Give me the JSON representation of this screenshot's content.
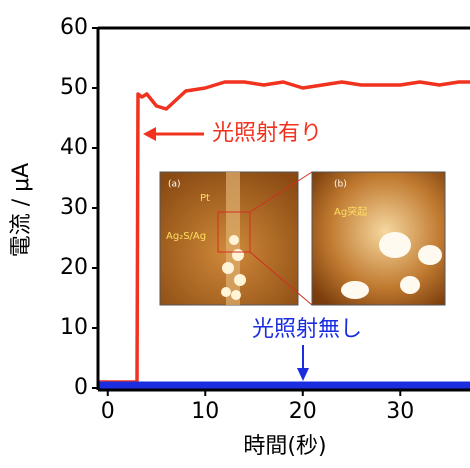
{
  "chart_data": {
    "type": "line",
    "xlabel": "時間(秒)",
    "ylabel": "電流 / μA",
    "xlim": [
      -1,
      37.15
    ],
    "ylim": [
      0,
      60
    ],
    "xticks": [
      0,
      10,
      20,
      30
    ],
    "yticks": [
      0,
      10,
      20,
      30,
      40,
      50,
      60
    ],
    "series": [
      {
        "name": "光照射有り",
        "color": "#f0321e",
        "x": [
          -1,
          3.0,
          3.1,
          3.5,
          4,
          5,
          6,
          7,
          8,
          10,
          12,
          14,
          16,
          18,
          20,
          22,
          24,
          26,
          28,
          30,
          32,
          34,
          36,
          37.15
        ],
        "values": [
          1,
          1,
          49,
          48.5,
          49,
          47,
          46.5,
          48,
          49.5,
          50,
          51,
          51,
          50.5,
          51,
          50,
          50.5,
          51,
          50.5,
          50.5,
          50.5,
          51,
          50.5,
          51,
          51
        ]
      },
      {
        "name": "光照射無し",
        "color": "#1a2ee0",
        "x": [
          -1,
          37.15
        ],
        "values": [
          0.5,
          0.5
        ]
      }
    ],
    "inset": {
      "a": "(a)",
      "pt": "Pt",
      "ag2s": "Ag₂S/Ag",
      "b": "(b)",
      "bump": "Ag突起"
    }
  }
}
